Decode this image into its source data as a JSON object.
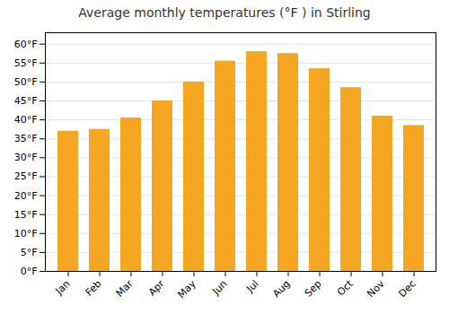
{
  "chart_data": {
    "type": "bar",
    "title": "Average monthly temperatures (°F ) in Stirling",
    "categories": [
      "Jan",
      "Feb",
      "Mar",
      "Apr",
      "May",
      "Jun",
      "Jul",
      "Aug",
      "Sep",
      "Oct",
      "Nov",
      "Dec"
    ],
    "values": [
      37,
      37.5,
      40.5,
      45,
      50,
      55.5,
      58,
      57.5,
      53.5,
      48.5,
      41,
      38.5
    ],
    "color": "#F5A623",
    "ylim": [
      0,
      63
    ],
    "yticks": [
      {
        "value": 0,
        "label": "0°F"
      },
      {
        "value": 5,
        "label": "5°F"
      },
      {
        "value": 10,
        "label": "10°F"
      },
      {
        "value": 15,
        "label": "15°F"
      },
      {
        "value": 20,
        "label": "20°F"
      },
      {
        "value": 25,
        "label": "25°F"
      },
      {
        "value": 30,
        "label": "30°F"
      },
      {
        "value": 35,
        "label": "35°F"
      },
      {
        "value": 40,
        "label": "40°F"
      },
      {
        "value": 45,
        "label": "45°F"
      },
      {
        "value": 50,
        "label": "50°F"
      },
      {
        "value": 55,
        "label": "55°F"
      },
      {
        "value": 60,
        "label": "60°F"
      }
    ],
    "grid": true
  }
}
